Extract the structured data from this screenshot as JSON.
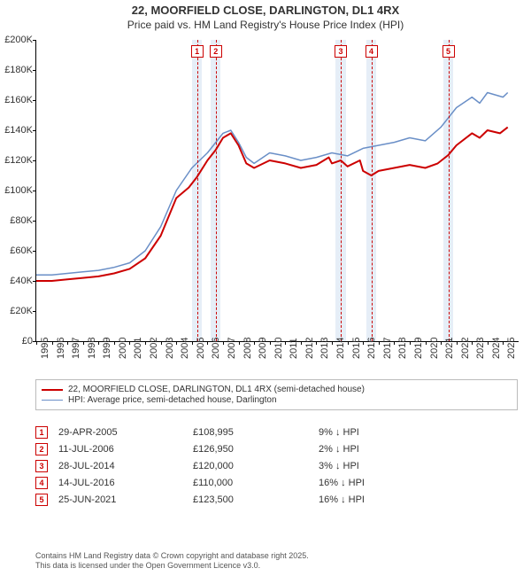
{
  "title_line1": "22, MOORFIELD CLOSE, DARLINGTON, DL1 4RX",
  "title_line2": "Price paid vs. HM Land Registry's House Price Index (HPI)",
  "chart": {
    "type": "line",
    "background_color": "#ffffff",
    "axis_color": "#000000",
    "ylim": [
      0,
      200000
    ],
    "ytick_step": 20000,
    "ytick_labels": [
      "£0",
      "£20K",
      "£40K",
      "£60K",
      "£80K",
      "£100K",
      "£120K",
      "£140K",
      "£160K",
      "£180K",
      "£200K"
    ],
    "xlim": [
      1995,
      2026
    ],
    "xticks": [
      1995,
      1996,
      1997,
      1998,
      1999,
      2000,
      2001,
      2002,
      2003,
      2004,
      2005,
      2006,
      2007,
      2008,
      2009,
      2010,
      2011,
      2012,
      2013,
      2014,
      2015,
      2016,
      2017,
      2018,
      2019,
      2020,
      2021,
      2022,
      2023,
      2024,
      2025
    ],
    "tick_fontsize": 11,
    "band_color": "#e6eef7",
    "marker_border_color": "#cc0000",
    "marker_text_color": "#cc0000",
    "series": [
      {
        "name": "property",
        "label": "22, MOORFIELD CLOSE, DARLINGTON, DL1 4RX (semi-detached house)",
        "color": "#cc0000",
        "line_width": 2,
        "points": [
          [
            1995.0,
            40000
          ],
          [
            1996.0,
            40000
          ],
          [
            1997.0,
            41000
          ],
          [
            1998.0,
            42000
          ],
          [
            1999.0,
            43000
          ],
          [
            2000.0,
            45000
          ],
          [
            2001.0,
            48000
          ],
          [
            2002.0,
            55000
          ],
          [
            2003.0,
            70000
          ],
          [
            2004.0,
            95000
          ],
          [
            2004.8,
            102000
          ],
          [
            2005.33,
            108995
          ],
          [
            2006.0,
            120000
          ],
          [
            2006.53,
            126950
          ],
          [
            2007.0,
            135000
          ],
          [
            2007.5,
            138000
          ],
          [
            2008.0,
            130000
          ],
          [
            2008.5,
            118000
          ],
          [
            2009.0,
            115000
          ],
          [
            2010.0,
            120000
          ],
          [
            2011.0,
            118000
          ],
          [
            2012.0,
            115000
          ],
          [
            2013.0,
            117000
          ],
          [
            2013.8,
            122000
          ],
          [
            2014.0,
            118000
          ],
          [
            2014.57,
            120000
          ],
          [
            2015.0,
            116000
          ],
          [
            2015.8,
            120000
          ],
          [
            2016.0,
            113000
          ],
          [
            2016.53,
            110000
          ],
          [
            2017.0,
            113000
          ],
          [
            2018.0,
            115000
          ],
          [
            2019.0,
            117000
          ],
          [
            2020.0,
            115000
          ],
          [
            2020.8,
            118000
          ],
          [
            2021.48,
            123500
          ],
          [
            2022.0,
            130000
          ],
          [
            2023.0,
            138000
          ],
          [
            2023.5,
            135000
          ],
          [
            2024.0,
            140000
          ],
          [
            2024.8,
            138000
          ],
          [
            2025.3,
            142000
          ]
        ]
      },
      {
        "name": "hpi",
        "label": "HPI: Average price, semi-detached house, Darlington",
        "color": "#6a8fc7",
        "line_width": 1.5,
        "points": [
          [
            1995.0,
            44000
          ],
          [
            1996.0,
            44000
          ],
          [
            1997.0,
            45000
          ],
          [
            1998.0,
            46000
          ],
          [
            1999.0,
            47000
          ],
          [
            2000.0,
            49000
          ],
          [
            2001.0,
            52000
          ],
          [
            2002.0,
            60000
          ],
          [
            2003.0,
            76000
          ],
          [
            2004.0,
            100000
          ],
          [
            2005.0,
            115000
          ],
          [
            2006.0,
            125000
          ],
          [
            2007.0,
            138000
          ],
          [
            2007.5,
            140000
          ],
          [
            2008.0,
            132000
          ],
          [
            2008.5,
            122000
          ],
          [
            2009.0,
            118000
          ],
          [
            2010.0,
            125000
          ],
          [
            2011.0,
            123000
          ],
          [
            2012.0,
            120000
          ],
          [
            2013.0,
            122000
          ],
          [
            2014.0,
            125000
          ],
          [
            2015.0,
            123000
          ],
          [
            2016.0,
            128000
          ],
          [
            2017.0,
            130000
          ],
          [
            2018.0,
            132000
          ],
          [
            2019.0,
            135000
          ],
          [
            2020.0,
            133000
          ],
          [
            2021.0,
            142000
          ],
          [
            2022.0,
            155000
          ],
          [
            2023.0,
            162000
          ],
          [
            2023.5,
            158000
          ],
          [
            2024.0,
            165000
          ],
          [
            2025.0,
            162000
          ],
          [
            2025.3,
            165000
          ]
        ]
      }
    ],
    "sale_markers": [
      {
        "n": "1",
        "x_year": 2005.33,
        "band": [
          2005.0,
          2005.66
        ]
      },
      {
        "n": "2",
        "x_year": 2006.53,
        "band": [
          2006.2,
          2006.86
        ]
      },
      {
        "n": "3",
        "x_year": 2014.57,
        "band": [
          2014.24,
          2014.9
        ]
      },
      {
        "n": "4",
        "x_year": 2016.53,
        "band": [
          2016.2,
          2016.86
        ]
      },
      {
        "n": "5",
        "x_year": 2021.48,
        "band": [
          2021.15,
          2021.81
        ]
      }
    ]
  },
  "legend": {
    "border_color": "#bbbbbb",
    "fontsize": 10,
    "items": [
      {
        "color": "#cc0000",
        "width": 2,
        "label_bind": "chart.series.0.label"
      },
      {
        "color": "#6a8fc7",
        "width": 1.5,
        "label_bind": "chart.series.1.label"
      }
    ]
  },
  "sales_table": {
    "rows": [
      {
        "n": "1",
        "date": "29-APR-2005",
        "price": "£108,995",
        "diff": "9% ↓ HPI"
      },
      {
        "n": "2",
        "date": "11-JUL-2006",
        "price": "£126,950",
        "diff": "2% ↓ HPI"
      },
      {
        "n": "3",
        "date": "28-JUL-2014",
        "price": "£120,000",
        "diff": "3% ↓ HPI"
      },
      {
        "n": "4",
        "date": "14-JUL-2016",
        "price": "£110,000",
        "diff": "16% ↓ HPI"
      },
      {
        "n": "5",
        "date": "25-JUN-2021",
        "price": "£123,500",
        "diff": "16% ↓ HPI"
      }
    ]
  },
  "footer_line1": "Contains HM Land Registry data © Crown copyright and database right 2025.",
  "footer_line2": "This data is licensed under the Open Government Licence v3.0."
}
